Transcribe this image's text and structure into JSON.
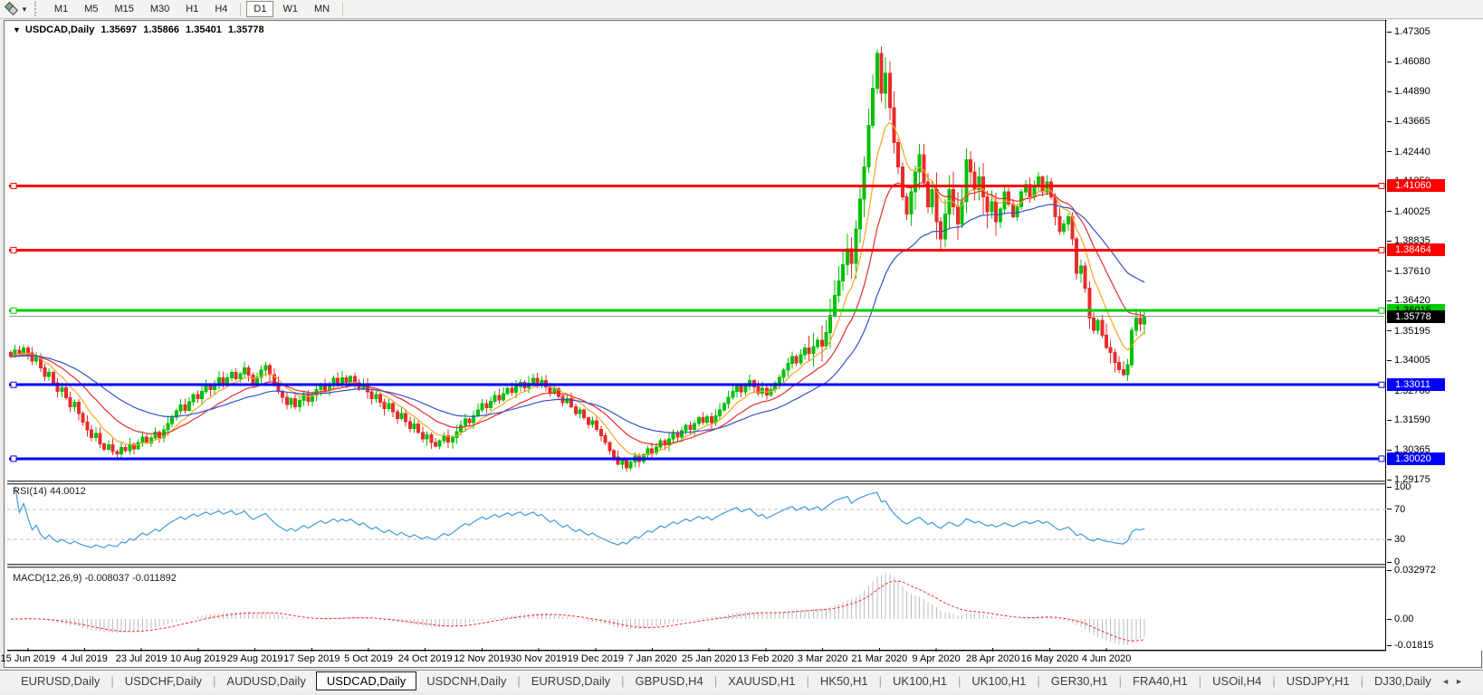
{
  "toolbar": {
    "timeframes": [
      {
        "label": "M1",
        "active": false
      },
      {
        "label": "M5",
        "active": false
      },
      {
        "label": "M15",
        "active": false
      },
      {
        "label": "M30",
        "active": false
      },
      {
        "label": "H1",
        "active": false
      },
      {
        "label": "H4",
        "active": false
      },
      {
        "label": "D1",
        "active": true
      },
      {
        "label": "W1",
        "active": false
      },
      {
        "label": "MN",
        "active": false
      }
    ]
  },
  "icons": {
    "symbol_dropdown": "▼",
    "toolbar_caret": "▼",
    "tab_scroll_left": "◄",
    "tab_scroll_right": "►"
  },
  "quote": {
    "title": "USDCAD,Daily",
    "open": "1.35697",
    "high": "1.35866",
    "low": "1.35401",
    "close": "1.35778"
  },
  "rsi": {
    "label": "RSI(14)",
    "value": "44.0012",
    "color": "#3e9bdb",
    "scale": [
      {
        "label": "100",
        "value": 100
      },
      {
        "label": "70",
        "value": 70
      },
      {
        "label": "30",
        "value": 30
      },
      {
        "label": "0",
        "value": 0
      }
    ],
    "dashed_levels": [
      70,
      30
    ]
  },
  "macd": {
    "label": "MACD(12,26,9)",
    "values": "-0.008037 -0.011892",
    "scale": [
      {
        "label": "0.032972",
        "value": 0.033
      },
      {
        "label": "0.00",
        "value": 0
      },
      {
        "label": "-0.01815",
        "value": -0.0178
      }
    ]
  },
  "tabbar": {
    "tabs": [
      {
        "label": "EURUSD,Daily",
        "active": false
      },
      {
        "label": "USDCHF,Daily",
        "active": false
      },
      {
        "label": "AUDUSD,Daily",
        "active": false
      },
      {
        "label": "USDCAD,Daily",
        "active": true
      },
      {
        "label": "USDCNH,Daily",
        "active": false
      },
      {
        "label": "EURUSD,Daily",
        "active": false
      },
      {
        "label": "GBPUSD,H4",
        "active": false
      },
      {
        "label": "XAUUSD,H1",
        "active": false
      },
      {
        "label": "HK50,H1",
        "active": false
      },
      {
        "label": "UK100,H1",
        "active": false
      },
      {
        "label": "UK100,H1",
        "active": false
      },
      {
        "label": "GER30,H1",
        "active": false
      },
      {
        "label": "FRA40,H1",
        "active": false
      },
      {
        "label": "USOil,H4",
        "active": false
      },
      {
        "label": "USDJPY,H1",
        "active": false
      },
      {
        "label": "DJ30,Daily",
        "active": false
      }
    ]
  },
  "chart_data": {
    "type": "candlestick",
    "symbol": "USDCAD",
    "timeframe": "Daily",
    "title": "USDCAD,Daily",
    "quote_ohlc": [
      1.35697,
      1.35866,
      1.35401,
      1.35778
    ],
    "current_price": 1.35778,
    "current_price_label": "1.35778",
    "colors": {
      "up": "#00c000",
      "down": "#e82c2c",
      "bg": "#ffffff",
      "current_line": "#999999"
    },
    "ma": [
      {
        "name": "ma-fast",
        "period": 8,
        "color": "#f5a623"
      },
      {
        "name": "ma-mid",
        "period": 18,
        "color": "#e03030"
      },
      {
        "name": "ma-slow",
        "period": 38,
        "color": "#3452c8"
      }
    ],
    "price_ticks": [
      "1.47305",
      "1.46080",
      "1.44890",
      "1.43665",
      "1.42440",
      "1.41250",
      "1.40025",
      "1.38835",
      "1.37610",
      "1.36420",
      "1.35195",
      "1.34005",
      "1.32780",
      "1.31590",
      "1.30365",
      "1.29175"
    ],
    "levels": [
      {
        "value": 1.4106,
        "label": "1.41060",
        "line": "#ff0000",
        "bg": "#ff0000",
        "fg": "#ffffff",
        "width": 3
      },
      {
        "value": 1.38464,
        "label": "1.38464",
        "line": "#ff0000",
        "bg": "#ff0000",
        "fg": "#ffffff",
        "width": 3
      },
      {
        "value": 1.36015,
        "label": "1.36015",
        "line": "#00cc00",
        "bg": "#00cc00",
        "fg": "#000000",
        "width": 3
      },
      {
        "value": 1.33011,
        "label": "1.33011",
        "line": "#0000ff",
        "bg": "#0000ff",
        "fg": "#ffffff",
        "width": 3
      },
      {
        "value": 1.3002,
        "label": "1.30020",
        "line": "#0000ff",
        "bg": "#0000ff",
        "fg": "#ffffff",
        "width": 3
      }
    ],
    "date_labels": [
      "15 Jun 2019",
      "4 Jul 2019",
      "23 Jul 2019",
      "10 Aug 2019",
      "29 Aug 2019",
      "17 Sep 2019",
      "5 Oct 2019",
      "24 Oct 2019",
      "12 Nov 2019",
      "30 Nov 2019",
      "19 Dec 2019",
      "7 Jan 2020",
      "25 Jan 2020",
      "13 Feb 2020",
      "3 Mar 2020",
      "21 Mar 2020",
      "9 Apr 2020",
      "28 Apr 2020",
      "16 May 2020",
      "4 Jun 2020"
    ],
    "first_open": 1.3432,
    "closes": [
      1.3415,
      1.3442,
      1.3428,
      1.345,
      1.343,
      1.3398,
      1.3412,
      1.337,
      1.3335,
      1.3352,
      1.331,
      1.3275,
      1.329,
      1.3248,
      1.3212,
      1.323,
      1.3185,
      1.315,
      1.3118,
      1.3088,
      1.3105,
      1.3062,
      1.304,
      1.3058,
      1.303,
      1.3022,
      1.3048,
      1.3035,
      1.306,
      1.3042,
      1.3068,
      1.309,
      1.3065,
      1.3085,
      1.311,
      1.3088,
      1.3118,
      1.3145,
      1.317,
      1.3195,
      1.322,
      1.3198,
      1.3232,
      1.3262,
      1.3245,
      1.3275,
      1.33,
      1.3282,
      1.3305,
      1.333,
      1.3308,
      1.333,
      1.3352,
      1.3325,
      1.3345,
      1.337,
      1.334,
      1.331,
      1.3332,
      1.336,
      1.3378,
      1.3342,
      1.3308,
      1.3275,
      1.325,
      1.3222,
      1.3245,
      1.3212,
      1.3238,
      1.3262,
      1.3235,
      1.3258,
      1.3282,
      1.3305,
      1.328,
      1.3302,
      1.3328,
      1.3305,
      1.333,
      1.3312,
      1.3335,
      1.331,
      1.3285,
      1.3305,
      1.3272,
      1.3245,
      1.3262,
      1.323,
      1.3205,
      1.3225,
      1.3192,
      1.3165,
      1.3185,
      1.3152,
      1.3125,
      1.3142,
      1.3108,
      1.3082,
      1.3098,
      1.3068,
      1.3052,
      1.3075,
      1.3095,
      1.307,
      1.3088,
      1.3112,
      1.3138,
      1.3162,
      1.3148,
      1.3175,
      1.32,
      1.3225,
      1.3208,
      1.3235,
      1.3258,
      1.324,
      1.3265,
      1.3288,
      1.327,
      1.3295,
      1.3312,
      1.329,
      1.3308,
      1.3328,
      1.3305,
      1.3318,
      1.3292,
      1.3268,
      1.3285,
      1.3255,
      1.3228,
      1.3245,
      1.3212,
      1.3185,
      1.32,
      1.3168,
      1.314,
      1.3155,
      1.312,
      1.3095,
      1.3068,
      1.3035,
      1.3008,
      1.298,
      1.2996,
      1.2965,
      1.2988,
      1.3012,
      1.299,
      1.3018,
      1.3042,
      1.3025,
      1.305,
      1.3075,
      1.3058,
      1.3082,
      1.3108,
      1.309,
      1.3115,
      1.3138,
      1.312,
      1.3145,
      1.3168,
      1.315,
      1.3172,
      1.3148,
      1.3175,
      1.32,
      1.3225,
      1.325,
      1.3275,
      1.3298,
      1.3272,
      1.3295,
      1.3318,
      1.3292,
      1.3268,
      1.3288,
      1.326,
      1.3282,
      1.3308,
      1.3332,
      1.336,
      1.3388,
      1.3415,
      1.339,
      1.3422,
      1.345,
      1.3428,
      1.3455,
      1.3482,
      1.3458,
      1.3512,
      1.3582,
      1.3662,
      1.3722,
      1.3788,
      1.3852,
      1.3792,
      1.3932,
      1.4052,
      1.4182,
      1.4352,
      1.4502,
      1.4642,
      1.4482,
      1.4562,
      1.4422,
      1.4282,
      1.4182,
      1.4062,
      1.3992,
      1.4082,
      1.4162,
      1.4232,
      1.4122,
      1.4022,
      1.4092,
      1.3962,
      1.3892,
      1.3992,
      1.4092,
      1.4022,
      1.3952,
      1.4042,
      1.4212,
      1.4162,
      1.4092,
      1.4142,
      1.4062,
      1.4002,
      1.4042,
      1.3962,
      1.4012,
      1.4082,
      1.4032,
      1.3982,
      1.4022,
      1.4082,
      1.4112,
      1.4062,
      1.4102,
      1.4142,
      1.4082,
      1.4122,
      1.4062,
      1.3982,
      1.3922,
      1.3952,
      1.3982,
      1.3892,
      1.3752,
      1.3782,
      1.3692,
      1.3572,
      1.3522,
      1.3562,
      1.3502,
      1.3452,
      1.3432,
      1.3392,
      1.3362,
      1.3342,
      1.3382,
      1.3522,
      1.3572,
      1.3548,
      1.3578
    ]
  }
}
